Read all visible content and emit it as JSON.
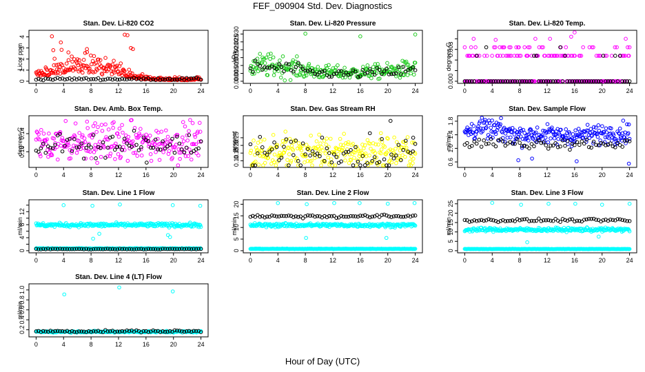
{
  "page": {
    "title": "FEF_090904  Std. Dev. Diagnostics",
    "xlabel": "Hour of Day (UTC)"
  },
  "colors": {
    "black": "#000000",
    "red": "#ff0000",
    "green": "#22cc22",
    "magenta": "#ff00ff",
    "yellow": "#ffff00",
    "blue": "#0000ff",
    "cyan": "#00ffff"
  },
  "chart_data": [
    {
      "type": "scatter",
      "title": "Stan. Dev. Li-820 CO2",
      "ylabel": "Licor ppm",
      "xlim": [
        0,
        24
      ],
      "ylim": [
        0,
        4.4
      ],
      "xticks": [
        0,
        4,
        8,
        12,
        16,
        20,
        24
      ],
      "yticks": [
        0,
        1,
        2,
        3,
        4
      ],
      "ytick_labels": [
        "0",
        "1",
        "2",
        "3",
        "4"
      ],
      "series": [
        {
          "color": "red",
          "baseline": 0.45,
          "spread": 0.3,
          "profile": [
            0.8,
            1.0,
            1.6,
            1.7,
            1.5,
            1.3,
            1.2,
            0.5,
            0.3,
            0.2,
            0.2,
            0.2,
            0.3
          ],
          "outliers": [
            [
              2.3,
              4.05
            ],
            [
              12.9,
              4.2
            ],
            [
              13.3,
              4.15
            ],
            [
              3.6,
              3.5
            ],
            [
              13.8,
              3.0
            ],
            [
              14.1,
              2.9
            ],
            [
              7.4,
              2.9
            ],
            [
              2.5,
              2.8
            ],
            [
              4.7,
              2.6
            ]
          ]
        },
        {
          "color": "black",
          "baseline": 0.2,
          "spread": 0.05,
          "profile": null,
          "outliers": []
        }
      ]
    },
    {
      "type": "scatter",
      "title": "Stan. Dev. Li-820 Pressure",
      "ylabel": "kPa",
      "xlim": [
        0,
        24
      ],
      "ylim": [
        0,
        0.031
      ],
      "xticks": [
        0,
        4,
        8,
        12,
        16,
        20,
        24
      ],
      "yticks": [
        0,
        0.005,
        0.01,
        0.015,
        0.02,
        0.025,
        0.03
      ],
      "ytick_labels": [
        "0.000",
        "0.005",
        "0.010",
        "0.015",
        "0.020",
        "0.025",
        "0.030"
      ],
      "series": [
        {
          "color": "green",
          "baseline": 0.008,
          "spread": 0.003,
          "profile": [
            1.2,
            1.25,
            1.2,
            1.1,
            0.85,
            0.75,
            0.7,
            0.65,
            0.7,
            0.75,
            0.8,
            0.9,
            1.0
          ],
          "outliers": [
            [
              8,
              0.0302
            ],
            [
              16,
              0.0285
            ],
            [
              24,
              0.0297
            ]
          ]
        },
        {
          "color": "black",
          "baseline": 0.007,
          "spread": 0.002,
          "profile": [
            1.2,
            1.25,
            1.2,
            1.1,
            0.85,
            0.75,
            0.7,
            0.65,
            0.7,
            0.75,
            0.8,
            0.9,
            1.0
          ],
          "outliers": []
        }
      ]
    },
    {
      "type": "scatter",
      "title": "Stan. Dev. Li-820 Temp.",
      "ylabel": "degrees C",
      "xlim": [
        0,
        24
      ],
      "ylim": [
        0,
        0.0046
      ],
      "xticks": [
        0,
        4,
        8,
        12,
        16,
        20,
        24
      ],
      "yticks": [
        0,
        0.001,
        0.002,
        0.003,
        0.004
      ],
      "ytick_labels": [
        "0.000",
        "",
        "",
        "0.003",
        ""
      ],
      "series": [
        {
          "color": "magenta",
          "levels": [
            0,
            0.0024,
            0.0032,
            0.004
          ],
          "levelweights": [
            0.6,
            0.3,
            0.08,
            0.02
          ],
          "outliers": [
            [
              4.5,
              0.0039
            ],
            [
              16,
              0.0046
            ],
            [
              15.5,
              0.0042
            ]
          ]
        },
        {
          "color": "black",
          "levels": [
            0,
            0.0024,
            0.0032
          ],
          "levelweights": [
            0.8,
            0.17,
            0.03
          ],
          "outliers": []
        }
      ]
    },
    {
      "type": "scatter",
      "title": "Stan. Dev. Amb. Box Temp.",
      "ylabel": "degrees C",
      "xlim": [
        0,
        24
      ],
      "ylim": [
        0.07,
        0.175
      ],
      "xticks": [
        0,
        4,
        8,
        12,
        16,
        20,
        24
      ],
      "yticks": [
        0.1,
        0.14
      ],
      "ytick_labels": [
        "0.10",
        "0.14"
      ],
      "series": [
        {
          "color": "magenta",
          "baseline": 0.12,
          "spread": 0.02,
          "profile": null,
          "outliers": [
            [
              4.3,
              0.168
            ],
            [
              13.9,
              0.17
            ],
            [
              8.6,
              0.163
            ]
          ]
        },
        {
          "color": "black",
          "baseline": 0.115,
          "spread": 0.012,
          "profile": null,
          "outliers": [
            [
              16.1,
              0.076
            ]
          ]
        }
      ]
    },
    {
      "type": "scatter",
      "title": "Stan. Dev. Gas Stream RH",
      "ylabel": "percent",
      "xlim": [
        0,
        24
      ],
      "ylim": [
        0.07,
        0.38
      ],
      "xticks": [
        0,
        4,
        8,
        12,
        16,
        20,
        24
      ],
      "yticks": [
        0.1,
        0.15,
        0.2,
        0.25
      ],
      "ytick_labels": [
        "0.10",
        "0.15",
        "0.20",
        "0.25"
      ],
      "series": [
        {
          "color": "yellow",
          "baseline": 0.155,
          "spread": 0.05,
          "profile": null,
          "outliers": [
            [
              5.1,
              0.29
            ],
            [
              10,
              0.27
            ],
            [
              19,
              0.28
            ]
          ]
        },
        {
          "color": "black",
          "baseline": 0.15,
          "spread": 0.06,
          "profile": null,
          "outliers": [
            [
              20.4,
              0.36
            ],
            [
              23.7,
              0.25
            ]
          ]
        }
      ]
    },
    {
      "type": "scatter",
      "title": "Stan. Dev. Sample Flow",
      "ylabel": "ml/min",
      "xlim": [
        0,
        24
      ],
      "ylim": [
        0.5,
        1.9
      ],
      "xticks": [
        0,
        4,
        8,
        12,
        16,
        20,
        24
      ],
      "yticks": [
        0.6,
        1.0,
        1.4,
        1.8
      ],
      "ytick_labels": [
        "0.6",
        "1.0",
        "1.4",
        "1.8"
      ],
      "series": [
        {
          "color": "blue",
          "baseline": 1.4,
          "spread": 0.14,
          "profile": [
            1.05,
            1.15,
            1.1,
            1.05,
            1.0,
            1.0,
            1.0,
            0.98,
            0.98,
            1.0,
            1.02,
            1.04,
            1.05
          ],
          "outliers": [
            [
              23.9,
              0.55
            ],
            [
              7.8,
              0.65
            ],
            [
              16.3,
              0.62
            ],
            [
              9.8,
              0.7
            ]
          ]
        },
        {
          "color": "black",
          "baseline": 1.15,
          "spread": 0.08,
          "profile": null,
          "outliers": []
        }
      ]
    },
    {
      "type": "scatter",
      "title": "Stan. Dev. Line 1 Flow",
      "ylabel": "ml/min",
      "xlim": [
        0,
        24
      ],
      "ylim": [
        0,
        15
      ],
      "xticks": [
        0,
        4,
        8,
        12,
        16,
        20,
        24
      ],
      "yticks": [
        0,
        2,
        4,
        6,
        8,
        10,
        12,
        14
      ],
      "ytick_labels": [
        "0",
        "",
        "4",
        "",
        "8",
        "",
        "12",
        ""
      ],
      "series": [
        {
          "color": "cyan",
          "baseline": 7.9,
          "spread": 0.3,
          "profile": null,
          "outliers": [
            [
              4,
              14
            ],
            [
              8.2,
              13.8
            ],
            [
              12.2,
              14.2
            ],
            [
              19.9,
              14
            ],
            [
              23.9,
              13.8
            ],
            [
              8.3,
              3.7
            ],
            [
              9.2,
              5.2
            ],
            [
              19.2,
              4.8
            ],
            [
              19.5,
              4.2
            ]
          ]
        },
        {
          "color": "cyan",
          "baseline": 0.7,
          "spread": 0.05,
          "profile": null,
          "outliers": []
        },
        {
          "color": "black",
          "baseline": 0.5,
          "spread": 0.05,
          "profile": null,
          "outliers": []
        }
      ]
    },
    {
      "type": "scatter",
      "title": "Stan. Dev. Line 2 Flow",
      "ylabel": "ml/min",
      "xlim": [
        0,
        24
      ],
      "ylim": [
        0,
        21
      ],
      "xticks": [
        0,
        4,
        8,
        12,
        16,
        20,
        24
      ],
      "yticks": [
        0,
        5,
        10,
        15,
        20
      ],
      "ytick_labels": [
        "0",
        "5",
        "10",
        "15",
        "20"
      ],
      "series": [
        {
          "color": "cyan",
          "baseline": 11,
          "spread": 0.4,
          "profile": null,
          "outliers": [
            [
              4,
              20.5
            ],
            [
              8.2,
              20
            ],
            [
              12.2,
              20.5
            ],
            [
              15.9,
              20.5
            ],
            [
              20,
              20.2
            ],
            [
              23.9,
              20.5
            ],
            [
              8.1,
              5.5
            ],
            [
              19.8,
              5.5
            ]
          ]
        },
        {
          "color": "cyan",
          "baseline": 0.8,
          "spread": 0.05,
          "profile": null,
          "outliers": []
        },
        {
          "color": "black",
          "baseline": 14.8,
          "spread": 0.35,
          "profile": null,
          "outliers": []
        }
      ]
    },
    {
      "type": "scatter",
      "title": "Stan. Dev. Line 3 Flow",
      "ylabel": "ml/min",
      "xlim": [
        0,
        24
      ],
      "ylim": [
        0,
        26
      ],
      "xticks": [
        0,
        4,
        8,
        12,
        16,
        20,
        24
      ],
      "yticks": [
        0,
        5,
        10,
        15,
        20,
        25
      ],
      "ytick_labels": [
        "0",
        "5",
        "10",
        "15",
        "20",
        "25"
      ],
      "series": [
        {
          "color": "cyan",
          "baseline": 11.2,
          "spread": 0.5,
          "profile": null,
          "outliers": [
            [
              4,
              25.5
            ],
            [
              8.2,
              24.5
            ],
            [
              12.2,
              25
            ],
            [
              16.1,
              25
            ],
            [
              20,
              24.5
            ],
            [
              24,
              25
            ],
            [
              9.1,
              4.5
            ],
            [
              19.5,
              7.5
            ]
          ]
        },
        {
          "color": "cyan",
          "baseline": 0.9,
          "spread": 0.05,
          "profile": null,
          "outliers": []
        },
        {
          "color": "black",
          "baseline": 16.2,
          "spread": 0.4,
          "profile": null,
          "outliers": []
        }
      ]
    },
    {
      "type": "scatter",
      "title": "Stan. Dev. Line 4 (LT) Flow",
      "ylabel": "ml/min",
      "xlim": [
        0,
        24
      ],
      "ylim": [
        0.1,
        1.08
      ],
      "xticks": [
        0,
        4,
        8,
        12,
        16,
        20,
        24
      ],
      "yticks": [
        0.2,
        0.4,
        0.6,
        0.8,
        1.0
      ],
      "ytick_labels": [
        "0.2",
        "0.4",
        "0.6",
        "0.8",
        "1.0"
      ],
      "series": [
        {
          "color": "cyan",
          "baseline": 0.16,
          "spread": 0.008,
          "profile": null,
          "outliers": [
            [
              4.1,
              0.91
            ],
            [
              12.1,
              1.05
            ],
            [
              19.9,
              0.97
            ]
          ]
        },
        {
          "color": "black",
          "baseline": 0.17,
          "spread": 0.01,
          "profile": null,
          "outliers": []
        }
      ]
    }
  ]
}
